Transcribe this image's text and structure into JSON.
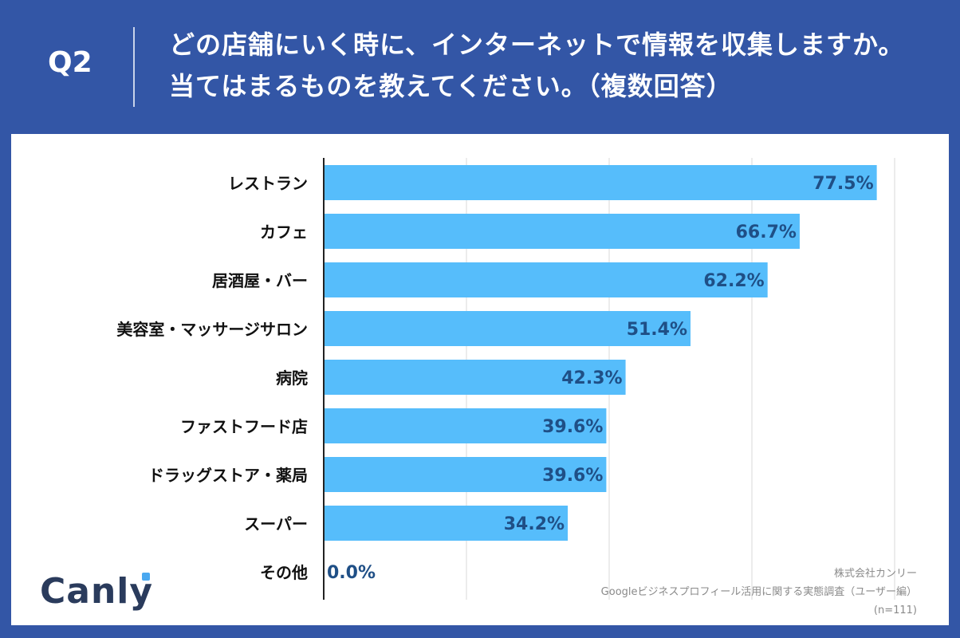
{
  "header": {
    "q_label": "Q2",
    "question": "どの店舗にいく時に、インターネットで情報を収集しますか。当てはまるものを教えてください。（複数回答）"
  },
  "logo": {
    "text": "Canly"
  },
  "source": {
    "company": "株式会社カンリー",
    "survey": "Googleビジネスプロフィール活用に関する実態調査（ユーザー編）",
    "sample": "(n=111)"
  },
  "colors": {
    "background": "#3356a6",
    "bar": "#56bdfb",
    "value_label": "#1f4f86",
    "gridline": "#d9d9d9"
  },
  "chart_data": {
    "type": "bar",
    "orientation": "horizontal",
    "categories": [
      "レストラン",
      "カフェ",
      "居酒屋・バー",
      "美容室・マッサージサロン",
      "病院",
      "ファストフード店",
      "ドラッグストア・薬局",
      "スーパー",
      "その他"
    ],
    "values": [
      77.5,
      66.7,
      62.2,
      51.4,
      42.3,
      39.6,
      39.6,
      34.2,
      0.0
    ],
    "value_labels": [
      "77.5%",
      "66.7%",
      "62.2%",
      "51.4%",
      "42.3%",
      "39.6%",
      "39.6%",
      "34.2%",
      "0.0%"
    ],
    "xlim": [
      0,
      80
    ],
    "grid": true,
    "legend": "none"
  }
}
